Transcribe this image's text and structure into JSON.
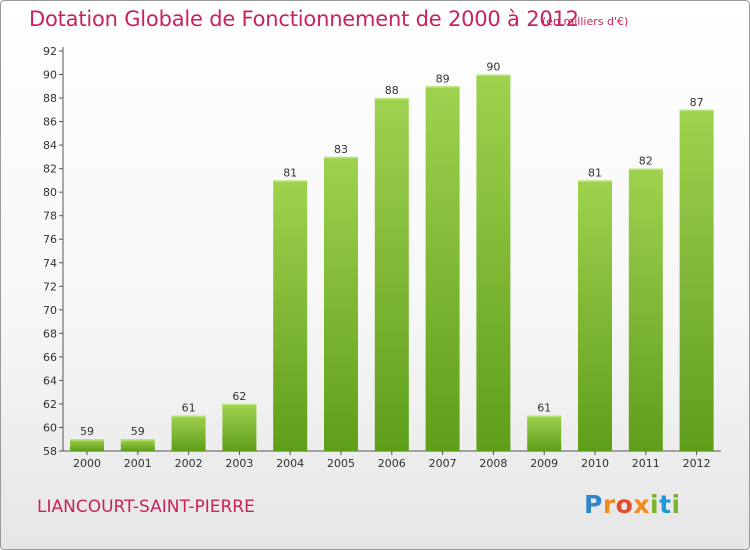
{
  "header": {
    "title": "Dotation Globale de Fonctionnement de 2000 à 2012",
    "unit": "(en milliers d'€)"
  },
  "footer": {
    "commune": "LIANCOURT-SAINT-PIERRE",
    "logo_letters": [
      "P",
      "r",
      "o",
      "x",
      "i",
      "t",
      "i"
    ]
  },
  "colors": {
    "bar_top": "#9fd24f",
    "bar_bottom": "#5f9e1a",
    "title": "#c8235a"
  },
  "chart_data": {
    "type": "bar",
    "title": "Dotation Globale de Fonctionnement de 2000 à 2012",
    "subtitle": "(en milliers d'€)",
    "xlabel": "",
    "ylabel": "",
    "categories": [
      "2000",
      "2001",
      "2002",
      "2003",
      "2004",
      "2005",
      "2006",
      "2007",
      "2008",
      "2009",
      "2010",
      "2011",
      "2012"
    ],
    "values": [
      59,
      59,
      61,
      62,
      81,
      83,
      88,
      89,
      90,
      61,
      81,
      82,
      87
    ],
    "ylim": [
      58,
      92
    ],
    "yticks": [
      58,
      60,
      62,
      64,
      66,
      68,
      70,
      72,
      74,
      76,
      78,
      80,
      82,
      84,
      86,
      88,
      90,
      92
    ],
    "grid": false,
    "legend": "none"
  }
}
